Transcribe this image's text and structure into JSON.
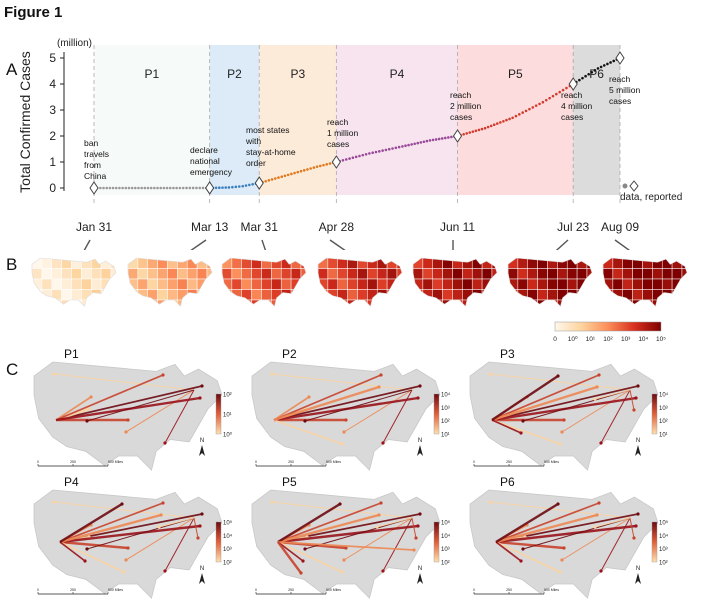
{
  "figure_title": "Figure 1",
  "panel_letters": {
    "a": "A",
    "b": "B",
    "c": "C"
  },
  "chart_data": [
    {
      "type": "line",
      "panel": "A",
      "ylabel": "Total Confirmed Cases",
      "yunit": "(million)",
      "ylim": [
        0,
        5.2
      ],
      "yticks": [
        "0",
        "1",
        "2",
        "3",
        "4",
        "5"
      ],
      "xlim": [
        "2020-01-31",
        "2020-08-09"
      ],
      "xticks": [
        {
          "date": "2020-01-31",
          "label": "Jan 31"
        },
        {
          "date": "2020-03-13",
          "label": "Mar 13"
        },
        {
          "date": "2020-03-31",
          "label": "Mar 31"
        },
        {
          "date": "2020-04-28",
          "label": "Apr 28"
        },
        {
          "date": "2020-06-11",
          "label": "Jun 11"
        },
        {
          "date": "2020-07-23",
          "label": "Jul 23"
        },
        {
          "date": "2020-08-09",
          "label": "Aug 09"
        }
      ],
      "phases": [
        {
          "name": "P1",
          "start": "2020-01-31",
          "end": "2020-03-13",
          "color": "#f6faf8"
        },
        {
          "name": "P2",
          "start": "2020-03-13",
          "end": "2020-03-31",
          "color": "#dcebf7"
        },
        {
          "name": "P3",
          "start": "2020-03-31",
          "end": "2020-04-28",
          "color": "#fdebd9"
        },
        {
          "name": "P4",
          "start": "2020-04-28",
          "end": "2020-06-11",
          "color": "#f7e4ee"
        },
        {
          "name": "P5",
          "start": "2020-06-11",
          "end": "2020-07-23",
          "color": "#fcdcdc"
        },
        {
          "name": "P6",
          "start": "2020-07-23",
          "end": "2020-08-09",
          "color": "#dcdcdc"
        }
      ],
      "series_data": [
        {
          "date": "2020-01-31",
          "value": 0.0
        },
        {
          "date": "2020-02-15",
          "value": 0.0
        },
        {
          "date": "2020-03-01",
          "value": 0.0
        },
        {
          "date": "2020-03-13",
          "value": 0.002
        },
        {
          "date": "2020-03-20",
          "value": 0.02
        },
        {
          "date": "2020-03-25",
          "value": 0.07
        },
        {
          "date": "2020-03-31",
          "value": 0.19
        },
        {
          "date": "2020-04-07",
          "value": 0.4
        },
        {
          "date": "2020-04-14",
          "value": 0.61
        },
        {
          "date": "2020-04-21",
          "value": 0.82
        },
        {
          "date": "2020-04-28",
          "value": 1.0
        },
        {
          "date": "2020-05-10",
          "value": 1.33
        },
        {
          "date": "2020-05-22",
          "value": 1.6
        },
        {
          "date": "2020-06-01",
          "value": 1.83
        },
        {
          "date": "2020-06-11",
          "value": 2.0
        },
        {
          "date": "2020-06-21",
          "value": 2.3
        },
        {
          "date": "2020-07-01",
          "value": 2.7
        },
        {
          "date": "2020-07-12",
          "value": 3.3
        },
        {
          "date": "2020-07-23",
          "value": 4.0
        },
        {
          "date": "2020-08-01",
          "value": 4.6
        },
        {
          "date": "2020-08-09",
          "value": 5.0
        }
      ],
      "series_colors": [
        "#999999",
        "#3b7fc0",
        "#e0781e",
        "#9a4a9a",
        "#d23c2e",
        "#111111"
      ],
      "reported_markers": [
        {
          "date": "2020-01-31",
          "value": 0.0
        },
        {
          "date": "2020-03-13",
          "value": 0.002
        },
        {
          "date": "2020-03-31",
          "value": 0.19
        },
        {
          "date": "2020-04-28",
          "value": 1.0
        },
        {
          "date": "2020-06-11",
          "value": 2.0
        },
        {
          "date": "2020-07-23",
          "value": 4.0
        },
        {
          "date": "2020-08-09",
          "value": 5.0
        }
      ],
      "annotations": [
        {
          "date": "2020-01-31",
          "lines": [
            "ban",
            "travels",
            "from",
            "China"
          ]
        },
        {
          "date": "2020-03-13",
          "lines": [
            "declare",
            "national",
            "emergency"
          ]
        },
        {
          "date": "2020-03-31",
          "lines": [
            "most states",
            "with",
            "stay-at-home",
            "order"
          ]
        },
        {
          "date": "2020-04-28",
          "lines": [
            "reach",
            "1 million",
            "cases"
          ]
        },
        {
          "date": "2020-06-11",
          "lines": [
            "reach",
            "2 million",
            "cases"
          ]
        },
        {
          "date": "2020-07-23",
          "lines": [
            "reach",
            "4 million",
            "cases"
          ]
        },
        {
          "date": "2020-08-09",
          "lines": [
            "reach",
            "5 million",
            "cases"
          ]
        }
      ],
      "legend": {
        "label": "data, reported",
        "placement": "bottom-right"
      }
    },
    {
      "type": "heatmap",
      "panel": "B",
      "description_maps": 7,
      "map_intensity": [
        0.08,
        0.35,
        0.62,
        0.72,
        0.83,
        0.9,
        0.93
      ],
      "colorbar": {
        "ticks": [
          "0",
          "10⁰",
          "10¹",
          "10²",
          "10³",
          "10⁴",
          "10⁵"
        ],
        "colors": [
          "#fff7ec",
          "#fdd49e",
          "#fc8d59",
          "#d7301f",
          "#7f0000"
        ]
      }
    },
    {
      "type": "other",
      "panel": "C",
      "maps": [
        {
          "label": "P1",
          "colorbar_ticks": [
            "10⁰",
            "10¹",
            "10²"
          ]
        },
        {
          "label": "P2",
          "colorbar_ticks": [
            "10¹",
            "10²",
            "10³",
            "10⁴"
          ]
        },
        {
          "label": "P3",
          "colorbar_ticks": [
            "10¹",
            "10²",
            "10³",
            "10⁴"
          ]
        },
        {
          "label": "P4",
          "colorbar_ticks": [
            "10²",
            "10³",
            "10⁴",
            "10⁵"
          ]
        },
        {
          "label": "P5",
          "colorbar_ticks": [
            "10²",
            "10³",
            "10⁴",
            "10⁵"
          ]
        },
        {
          "label": "P6",
          "colorbar_ticks": [
            "10²",
            "10³",
            "10⁴",
            "10⁵"
          ]
        }
      ],
      "north_label": "N",
      "scale_ticks": [
        "0",
        "250",
        "500 Miles"
      ]
    }
  ]
}
